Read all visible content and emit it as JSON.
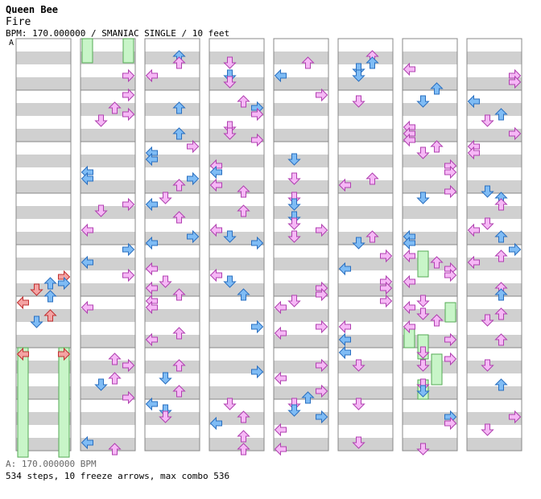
{
  "header": {
    "title": "Queen Bee",
    "artist": "Fire",
    "info": "BPM: 170.000000 / SMANIAC SINGLE / 10 feet"
  },
  "bpm_marker": "A",
  "footer": {
    "bpm_line": "A: 170.000000 BPM",
    "stats": "534 steps, 10 freeze arrows, max combo 536"
  },
  "colors": {
    "quarter": "#f4a3a3",
    "eighth": "#7fbcf5",
    "sixteenth": "#f6b8f6",
    "freeze": "#c8f5c8",
    "band": "#d0d0d0",
    "border": "#888888"
  },
  "chart_data": {
    "type": "step-chart",
    "columns": 8,
    "measures_per_column": 8,
    "lanes": [
      "left",
      "down",
      "up",
      "right"
    ],
    "steps": 534,
    "freeze_arrows": 10,
    "max_combo": 536
  }
}
